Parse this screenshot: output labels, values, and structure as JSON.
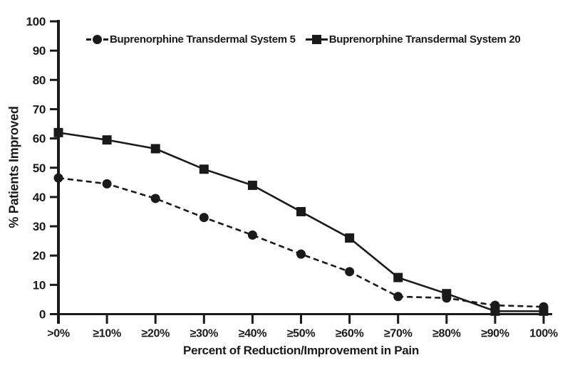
{
  "figure": {
    "background": "#ffffff",
    "ink_color": "#1a1a1a"
  },
  "chart_data": {
    "type": "line",
    "title": "",
    "xlabel": "Percent of Reduction/Improvement in Pain",
    "ylabel": "% Patients Improved",
    "categories": [
      ">0%",
      "≥10%",
      "≥20%",
      "≥30%",
      "≥40%",
      "≥50%",
      "≥60%",
      "≥70%",
      "≥80%",
      "≥90%",
      "100%"
    ],
    "ylim": [
      0,
      100
    ],
    "yticks": [
      0,
      10,
      20,
      30,
      40,
      50,
      60,
      70,
      80,
      90,
      100
    ],
    "grid": false,
    "legend_position": "top",
    "series": [
      {
        "name": "Buprenorphine Transdermal System 5",
        "marker": "circle",
        "line_style": "dashed",
        "values": [
          46.5,
          44.5,
          39.5,
          33,
          27,
          20.5,
          14.5,
          6,
          5.5,
          3,
          2.5
        ]
      },
      {
        "name": "Buprenorphine Transdermal System 20",
        "marker": "square",
        "line_style": "solid",
        "values": [
          62,
          59.5,
          56.5,
          49.5,
          44,
          35,
          26,
          12.5,
          7,
          1,
          1
        ]
      }
    ]
  }
}
